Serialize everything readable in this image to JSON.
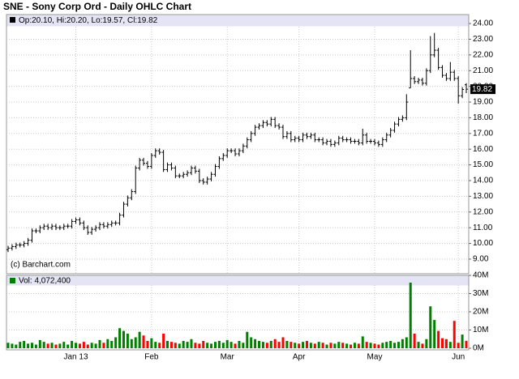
{
  "chart_data": [
    {
      "type": "ohlc",
      "title": "SNE - Sony Corp Ord - Daily OHLC Chart",
      "legend_text": "Op:20.10, Hi:20.20, Lo:19.57, Cl:19.82",
      "watermark": "(c) Barchart.com",
      "categories": [
        null,
        null,
        null,
        null,
        null,
        null,
        null,
        null,
        null,
        null,
        null,
        null,
        null,
        null,
        null,
        null,
        null,
        "Jan 13",
        null,
        null,
        null,
        null,
        null,
        null,
        null,
        null,
        null,
        null,
        null,
        null,
        null,
        null,
        null,
        null,
        null,
        null,
        "Feb",
        null,
        null,
        null,
        null,
        null,
        null,
        null,
        null,
        null,
        null,
        null,
        null,
        null,
        null,
        null,
        null,
        null,
        null,
        "Mar",
        null,
        null,
        null,
        null,
        null,
        null,
        null,
        null,
        null,
        null,
        null,
        null,
        null,
        null,
        null,
        null,
        null,
        "Apr",
        null,
        null,
        null,
        null,
        null,
        null,
        null,
        null,
        null,
        null,
        null,
        null,
        null,
        null,
        null,
        null,
        null,
        null,
        "May",
        null,
        null,
        null,
        null,
        null,
        null,
        null,
        null,
        null,
        null,
        null,
        null,
        null,
        null,
        null,
        null,
        null,
        null,
        null,
        null,
        "Jun",
        null,
        null
      ],
      "open": [
        9.6,
        9.7,
        9.8,
        9.9,
        9.9,
        10.0,
        10.2,
        10.8,
        10.8,
        11.0,
        11.1,
        11.0,
        11.1,
        11.0,
        11.0,
        11.1,
        11.1,
        11.4,
        11.5,
        11.3,
        11.0,
        10.7,
        10.9,
        11.0,
        11.2,
        11.1,
        11.2,
        11.3,
        11.3,
        11.8,
        12.5,
        12.9,
        13.3,
        14.8,
        15.3,
        15.1,
        14.9,
        15.6,
        15.9,
        15.8,
        14.7,
        15.0,
        14.8,
        14.3,
        14.3,
        14.4,
        14.5,
        14.8,
        14.6,
        14.0,
        13.9,
        14.1,
        14.4,
        14.9,
        15.4,
        15.6,
        15.9,
        15.9,
        15.7,
        15.9,
        16.2,
        16.6,
        17.0,
        17.4,
        17.5,
        17.7,
        17.6,
        17.9,
        17.5,
        17.4,
        16.8,
        17.0,
        16.6,
        16.7,
        16.6,
        16.9,
        16.8,
        16.9,
        16.6,
        16.6,
        16.4,
        16.5,
        16.3,
        16.4,
        16.7,
        16.6,
        16.6,
        16.5,
        16.5,
        16.4,
        16.9,
        16.5,
        16.5,
        16.4,
        16.3,
        16.6,
        16.9,
        17.2,
        17.6,
        17.9,
        18.0,
        19.9,
        20.5,
        20.3,
        20.4,
        20.2,
        21.0,
        22.0,
        22.3,
        21.2,
        20.7,
        20.5,
        20.9,
        20.5,
        19.4,
        20.1
      ],
      "high": [
        9.85,
        9.95,
        10.05,
        10.05,
        10.15,
        10.35,
        10.95,
        10.95,
        11.15,
        11.25,
        11.25,
        11.25,
        11.25,
        11.15,
        11.25,
        11.25,
        11.55,
        11.65,
        11.65,
        11.45,
        11.15,
        11.05,
        11.15,
        11.35,
        11.35,
        11.35,
        11.45,
        11.45,
        11.95,
        12.65,
        13.05,
        13.45,
        14.95,
        15.45,
        15.45,
        15.25,
        15.75,
        16.05,
        16.05,
        15.95,
        15.15,
        15.15,
        14.95,
        14.45,
        14.55,
        14.65,
        14.95,
        14.95,
        14.75,
        14.15,
        14.25,
        14.55,
        15.05,
        15.55,
        15.75,
        16.05,
        16.05,
        16.05,
        16.05,
        16.35,
        16.75,
        17.15,
        17.55,
        17.65,
        17.85,
        17.85,
        18.05,
        18.05,
        17.65,
        17.55,
        17.15,
        17.15,
        16.85,
        16.85,
        17.05,
        17.05,
        17.05,
        17.05,
        16.75,
        16.75,
        16.65,
        16.65,
        16.55,
        16.85,
        16.85,
        16.75,
        16.75,
        16.65,
        16.65,
        17.3,
        17.05,
        16.65,
        16.65,
        16.55,
        16.75,
        17.05,
        17.35,
        17.75,
        18.05,
        18.15,
        19.5,
        22.3,
        20.65,
        20.55,
        20.55,
        21.15,
        23.2,
        23.4,
        22.45,
        21.35,
        20.85,
        21.55,
        21.05,
        20.65,
        19.95,
        20.2
      ],
      "low": [
        9.45,
        9.55,
        9.65,
        9.75,
        9.75,
        9.85,
        10.05,
        10.65,
        10.65,
        10.85,
        10.85,
        10.85,
        10.85,
        10.85,
        10.85,
        10.95,
        10.95,
        11.25,
        11.15,
        10.85,
        10.55,
        10.55,
        10.75,
        10.85,
        10.95,
        10.95,
        11.05,
        11.15,
        11.15,
        11.65,
        12.35,
        12.75,
        13.15,
        14.65,
        14.95,
        14.75,
        14.75,
        15.45,
        15.65,
        14.55,
        14.55,
        14.65,
        14.15,
        14.15,
        14.15,
        14.25,
        14.35,
        14.45,
        13.85,
        13.75,
        13.75,
        13.95,
        14.25,
        14.75,
        15.25,
        15.45,
        15.75,
        15.55,
        15.55,
        15.75,
        16.05,
        16.45,
        16.85,
        17.25,
        17.35,
        17.45,
        17.45,
        17.35,
        17.25,
        16.65,
        16.65,
        16.45,
        16.45,
        16.45,
        16.45,
        16.65,
        16.65,
        16.45,
        16.45,
        16.25,
        16.25,
        16.15,
        16.15,
        16.25,
        16.45,
        16.45,
        16.35,
        16.35,
        16.25,
        16.25,
        16.35,
        16.35,
        16.25,
        16.15,
        16.15,
        16.45,
        16.75,
        17.05,
        17.45,
        17.75,
        17.85,
        19.9,
        20.15,
        20.15,
        20.05,
        20.05,
        20.85,
        21.85,
        21.05,
        20.55,
        20.35,
        20.35,
        20.35,
        18.9,
        19.25,
        19.57
      ],
      "close": [
        9.7,
        9.8,
        9.9,
        9.9,
        10.0,
        10.2,
        10.8,
        10.8,
        11.0,
        11.1,
        11.0,
        11.1,
        11.0,
        11.0,
        11.1,
        11.1,
        11.4,
        11.5,
        11.3,
        11.0,
        10.7,
        10.9,
        11.0,
        11.2,
        11.1,
        11.2,
        11.3,
        11.3,
        11.8,
        12.5,
        12.9,
        13.3,
        14.8,
        15.3,
        15.1,
        14.9,
        15.6,
        15.9,
        15.8,
        14.7,
        15.0,
        14.8,
        14.3,
        14.3,
        14.4,
        14.5,
        14.8,
        14.6,
        14.0,
        13.9,
        14.1,
        14.4,
        14.9,
        15.4,
        15.6,
        15.9,
        15.9,
        15.7,
        15.9,
        16.2,
        16.6,
        17.0,
        17.4,
        17.5,
        17.7,
        17.6,
        17.9,
        17.5,
        17.4,
        16.8,
        17.0,
        16.6,
        16.7,
        16.6,
        16.9,
        16.8,
        16.9,
        16.6,
        16.6,
        16.4,
        16.5,
        16.3,
        16.4,
        16.7,
        16.6,
        16.6,
        16.5,
        16.5,
        16.4,
        16.9,
        16.5,
        16.5,
        16.4,
        16.3,
        16.6,
        16.9,
        17.2,
        17.6,
        17.9,
        18.0,
        19.0,
        20.5,
        20.3,
        20.4,
        20.2,
        21.0,
        22.0,
        22.3,
        21.2,
        20.7,
        20.5,
        20.9,
        20.5,
        19.4,
        19.8,
        19.82
      ],
      "color": "#000000",
      "ylim": [
        8.07,
        24.57
      ],
      "yticks": [
        {
          "value": 9,
          "label": "9.00"
        },
        {
          "value": 10,
          "label": "10.00"
        },
        {
          "value": 11,
          "label": "11.00"
        },
        {
          "value": 12,
          "label": "12.00"
        },
        {
          "value": 13,
          "label": "13.00"
        },
        {
          "value": 14,
          "label": "14.00"
        },
        {
          "value": 15,
          "label": "15.00"
        },
        {
          "value": 16,
          "label": "16.00"
        },
        {
          "value": 17,
          "label": "17.00"
        },
        {
          "value": 18,
          "label": "18.00"
        },
        {
          "value": 19,
          "label": "19.00"
        },
        {
          "value": 20,
          "label": "20.00"
        },
        {
          "value": 21,
          "label": "21.00"
        },
        {
          "value": 22,
          "label": "22.00"
        },
        {
          "value": 23,
          "label": "23.00"
        },
        {
          "value": 24,
          "label": "24.00"
        }
      ],
      "grid": true
    },
    {
      "type": "volume",
      "legend_text": "Vol: 4,072,400",
      "values": [
        3.0,
        2.5,
        2.0,
        3.5,
        4.0,
        2.5,
        3.0,
        2.0,
        4.5,
        3.5,
        2.5,
        3.0,
        2.0,
        2.5,
        3.5,
        2.0,
        4.0,
        3.0,
        2.5,
        3.5,
        2.0,
        3.0,
        2.5,
        4.5,
        3.0,
        5.0,
        4.0,
        6.0,
        11.0,
        9.5,
        8.0,
        5.0,
        6.0,
        9.0,
        7.0,
        4.0,
        5.5,
        3.5,
        3.0,
        8.0,
        4.0,
        3.5,
        3.0,
        2.5,
        4.0,
        3.5,
        5.0,
        3.0,
        2.5,
        4.0,
        3.0,
        2.5,
        3.5,
        4.0,
        3.0,
        4.5,
        3.5,
        2.5,
        4.0,
        3.0,
        9.0,
        6.0,
        5.0,
        4.0,
        3.5,
        3.0,
        4.0,
        5.0,
        3.5,
        6.0,
        4.0,
        3.5,
        3.0,
        2.5,
        3.5,
        4.0,
        3.0,
        2.5,
        3.5,
        3.0,
        2.0,
        3.0,
        2.5,
        3.5,
        3.0,
        2.5,
        2.0,
        3.0,
        2.5,
        6.5,
        3.5,
        3.0,
        2.5,
        2.0,
        3.0,
        3.5,
        4.0,
        3.0,
        3.5,
        5.0,
        6.0,
        36.0,
        8.0,
        3.5,
        2.5,
        5.0,
        23.0,
        15.5,
        9.5,
        5.5,
        5.0,
        3.5,
        15.0,
        3.0,
        7.5,
        4.07
      ],
      "up_color": "#008000",
      "down_color": "#ff0000",
      "ylim": [
        0,
        40
      ],
      "yticks": [
        {
          "value": 0,
          "label": "0M"
        },
        {
          "value": 10,
          "label": "10M"
        },
        {
          "value": 20,
          "label": "20M"
        },
        {
          "value": 30,
          "label": "30M"
        },
        {
          "value": 40,
          "label": "40M"
        }
      ],
      "grid": true
    }
  ]
}
